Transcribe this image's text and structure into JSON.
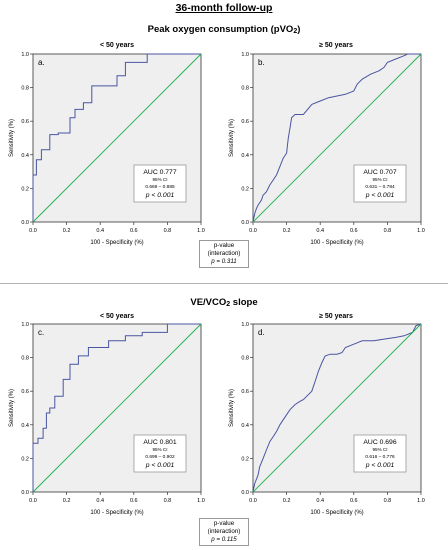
{
  "header": {
    "main_title": "36-month follow-up",
    "section1_title": "Peak oxygen consumption (pVO",
    "section1_sub": "2",
    "section1_close": ")",
    "section2_title": "VE/VCO",
    "section2_sub": "2",
    "section2_rest": " slope"
  },
  "pvalue_boxes": [
    {
      "line1": "p-value",
      "line2": "(interaction)",
      "line3": "p = 0.311"
    },
    {
      "line1": "p-value",
      "line2": "(interaction)",
      "line3": "p = 0.115"
    }
  ],
  "colors": {
    "roc_line": "#4a55a2",
    "reference_line": "#19b04b",
    "plot_background": "#efefef"
  },
  "chart_data": [
    {
      "type": "line",
      "title": "< 50 years",
      "panel_label": "a.",
      "xlabel": "100 - Specificity (%)",
      "ylabel": "Sensitivity (%)",
      "xlim": [
        0,
        1
      ],
      "ylim": [
        0,
        1
      ],
      "xticks": [
        "0.0",
        "0.2",
        "0.4",
        "0.6",
        "0.8",
        "1.0"
      ],
      "yticks": [
        "0.0",
        "0.2",
        "0.4",
        "0.6",
        "0.8",
        "1.0"
      ],
      "stats": {
        "auc": "AUC 0.777",
        "ci_label": "95% CI",
        "ci": "0.669 – 0.885",
        "p": "p < 0.001"
      },
      "series": [
        {
          "role": "roc",
          "x": [
            0,
            0,
            0.02,
            0.02,
            0.05,
            0.05,
            0.1,
            0.1,
            0.15,
            0.15,
            0.22,
            0.22,
            0.25,
            0.25,
            0.3,
            0.3,
            0.35,
            0.35,
            0.5,
            0.5,
            0.55,
            0.55,
            0.68,
            0.68,
            1.0
          ],
          "y": [
            0,
            0.28,
            0.28,
            0.37,
            0.37,
            0.43,
            0.43,
            0.52,
            0.52,
            0.53,
            0.53,
            0.62,
            0.62,
            0.67,
            0.67,
            0.71,
            0.71,
            0.81,
            0.81,
            0.87,
            0.87,
            0.95,
            0.95,
            1.0,
            1.0
          ]
        },
        {
          "role": "reference",
          "x": [
            0,
            1
          ],
          "y": [
            0,
            1
          ]
        }
      ]
    },
    {
      "type": "line",
      "title": "≥ 50 years",
      "panel_label": "b.",
      "xlabel": "100 - Specificity (%)",
      "ylabel": "Sensitivity (%)",
      "xlim": [
        0,
        1
      ],
      "ylim": [
        0,
        1
      ],
      "xticks": [
        "0.0",
        "0.2",
        "0.4",
        "0.6",
        "0.8",
        "1.0"
      ],
      "yticks": [
        "0.0",
        "0.2",
        "0.4",
        "0.6",
        "0.8",
        "1.0"
      ],
      "stats": {
        "auc": "AUC 0.707",
        "ci_label": "95% CI",
        "ci": "0.631 – 0.784",
        "p": "p < 0.001"
      },
      "series": [
        {
          "role": "roc",
          "x": [
            0,
            0.01,
            0.02,
            0.03,
            0.05,
            0.06,
            0.08,
            0.1,
            0.12,
            0.14,
            0.16,
            0.18,
            0.2,
            0.21,
            0.22,
            0.23,
            0.25,
            0.3,
            0.35,
            0.4,
            0.45,
            0.5,
            0.55,
            0.6,
            0.62,
            0.65,
            0.7,
            0.75,
            0.78,
            0.8,
            0.85,
            0.9,
            0.92,
            1.0
          ],
          "y": [
            0,
            0.05,
            0.08,
            0.1,
            0.13,
            0.16,
            0.18,
            0.22,
            0.25,
            0.28,
            0.33,
            0.38,
            0.41,
            0.5,
            0.56,
            0.62,
            0.64,
            0.64,
            0.7,
            0.72,
            0.74,
            0.75,
            0.76,
            0.78,
            0.82,
            0.85,
            0.88,
            0.9,
            0.92,
            0.95,
            0.97,
            0.99,
            1.0,
            1.0
          ]
        },
        {
          "role": "reference",
          "x": [
            0,
            1
          ],
          "y": [
            0,
            1
          ]
        }
      ]
    },
    {
      "type": "line",
      "title": "< 50 years",
      "panel_label": "c.",
      "xlabel": "100 - Specificity (%)",
      "ylabel": "Sensitivity (%)",
      "xlim": [
        0,
        1
      ],
      "ylim": [
        0,
        1
      ],
      "xticks": [
        "0.0",
        "0.2",
        "0.4",
        "0.6",
        "0.8",
        "1.0"
      ],
      "yticks": [
        "0.0",
        "0.2",
        "0.4",
        "0.6",
        "0.8",
        "1.0"
      ],
      "stats": {
        "auc": "AUC 0.801",
        "ci_label": "95% CI",
        "ci": "0.699 – 0.902",
        "p": "p < 0.001"
      },
      "series": [
        {
          "role": "roc",
          "x": [
            0,
            0,
            0.03,
            0.03,
            0.06,
            0.06,
            0.08,
            0.08,
            0.1,
            0.1,
            0.13,
            0.13,
            0.18,
            0.18,
            0.22,
            0.22,
            0.27,
            0.27,
            0.33,
            0.33,
            0.45,
            0.45,
            0.55,
            0.55,
            0.65,
            0.65,
            0.8,
            0.8,
            1.0
          ],
          "y": [
            0,
            0.29,
            0.29,
            0.32,
            0.32,
            0.38,
            0.38,
            0.47,
            0.47,
            0.5,
            0.5,
            0.57,
            0.57,
            0.67,
            0.67,
            0.76,
            0.76,
            0.81,
            0.81,
            0.86,
            0.86,
            0.9,
            0.9,
            0.93,
            0.93,
            0.95,
            0.95,
            1.0,
            1.0
          ]
        },
        {
          "role": "reference",
          "x": [
            0,
            1
          ],
          "y": [
            0,
            1
          ]
        }
      ]
    },
    {
      "type": "line",
      "title": "≥ 50 years",
      "panel_label": "d.",
      "xlabel": "100 - Specificity (%)",
      "ylabel": "Sensitivity (%)",
      "xlim": [
        0,
        1
      ],
      "ylim": [
        0,
        1
      ],
      "xticks": [
        "0.0",
        "0.2",
        "0.4",
        "0.6",
        "0.8",
        "1.0"
      ],
      "yticks": [
        "0.0",
        "0.2",
        "0.4",
        "0.6",
        "0.8",
        "1.0"
      ],
      "stats": {
        "auc": "AUC 0.696",
        "ci_label": "95% CI",
        "ci": "0.616 – 0.776",
        "p": "p < 0.001"
      },
      "series": [
        {
          "role": "roc",
          "x": [
            0,
            0.01,
            0.03,
            0.04,
            0.06,
            0.08,
            0.1,
            0.12,
            0.14,
            0.16,
            0.18,
            0.2,
            0.22,
            0.25,
            0.28,
            0.3,
            0.32,
            0.35,
            0.37,
            0.39,
            0.41,
            0.43,
            0.46,
            0.5,
            0.53,
            0.55,
            0.6,
            0.65,
            0.72,
            0.78,
            0.85,
            0.9,
            0.95,
            0.97,
            1.0
          ],
          "y": [
            0,
            0.05,
            0.1,
            0.15,
            0.2,
            0.25,
            0.3,
            0.33,
            0.36,
            0.4,
            0.43,
            0.46,
            0.49,
            0.52,
            0.54,
            0.55,
            0.57,
            0.6,
            0.66,
            0.72,
            0.77,
            0.81,
            0.82,
            0.82,
            0.83,
            0.86,
            0.88,
            0.9,
            0.9,
            0.91,
            0.92,
            0.93,
            0.95,
            0.99,
            1.0
          ]
        },
        {
          "role": "reference",
          "x": [
            0,
            1
          ],
          "y": [
            0,
            1
          ]
        }
      ]
    }
  ]
}
